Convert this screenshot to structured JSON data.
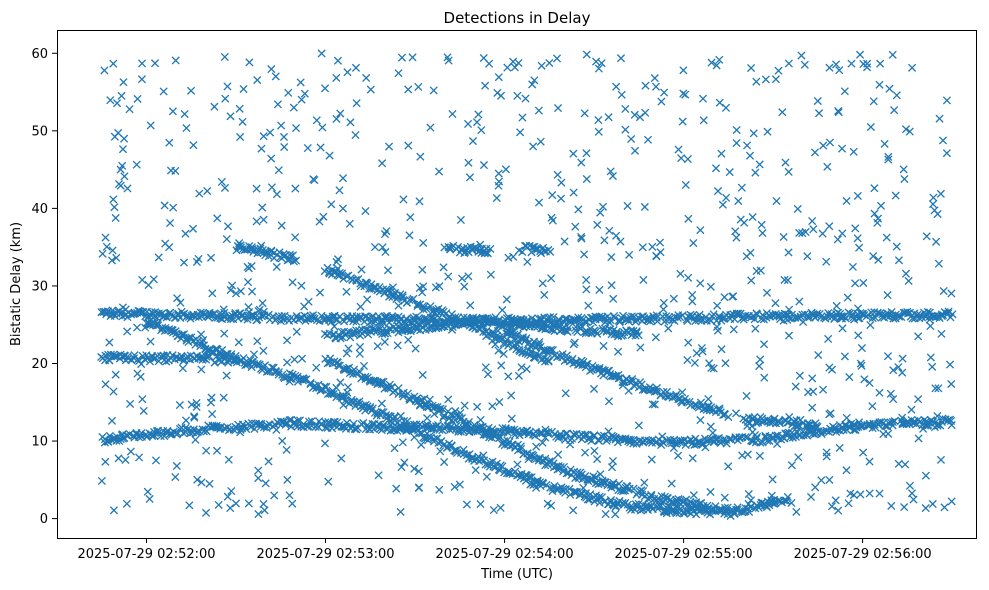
{
  "chart_data": {
    "type": "scatter",
    "title": "Detections in Delay",
    "xlabel": "Time (UTC)",
    "ylabel": "Bistatic Delay (km)",
    "x_ticks": [
      "2025-07-29 02:52:00",
      "2025-07-29 02:53:00",
      "2025-07-29 02:54:00",
      "2025-07-29 02:55:00",
      "2025-07-29 02:56:00"
    ],
    "y_ticks": [
      0,
      10,
      20,
      30,
      40,
      50,
      60
    ],
    "xlim": [
      "2025-07-29 02:51:30",
      "2025-07-29 02:56:38"
    ],
    "ylim": [
      -2.5,
      63
    ],
    "grid": false,
    "legend": "none",
    "marker": "x",
    "series_color": "#1f77b4",
    "series": [
      {
        "tracks": [
          {
            "from": "2025-07-29 02:51:45",
            "to": "2025-07-29 02:56:30",
            "y": [
              26.5,
              25.8,
              25.5,
              26.0,
              26.3
            ]
          },
          {
            "from": "2025-07-29 02:51:45",
            "to": "2025-07-29 02:56:30",
            "y": [
              10.2,
              11.5,
              12.3,
              11.8,
              11.5,
              10.5,
              9.8,
              10.2,
              12.0,
              12.5
            ]
          },
          {
            "from": "2025-07-29 02:51:45",
            "to": "2025-07-29 02:52:30",
            "y": [
              20.8,
              20.5
            ]
          },
          {
            "from": "2025-07-29 02:52:00",
            "to": "2025-07-29 02:55:10",
            "y": [
              25.5,
              21.0,
              17.5,
              13.0,
              8.0,
              4.0,
              1.5,
              0.8
            ]
          },
          {
            "from": "2025-07-29 02:53:00",
            "to": "2025-07-29 02:55:15",
            "y": [
              20.5,
              16.0,
              11.0,
              6.0,
              3.0,
              1.0
            ]
          },
          {
            "from": "2025-07-29 02:53:00",
            "to": "2025-07-29 02:54:15",
            "y": [
              32.0,
              28.5,
              25.0,
              20.0
            ]
          },
          {
            "from": "2025-07-29 02:54:00",
            "to": "2025-07-29 02:55:15",
            "y": [
              24.0,
              20.0,
              16.5,
              13.5
            ]
          },
          {
            "from": "2025-07-29 02:53:00",
            "to": "2025-07-29 02:54:45",
            "y": [
              23.5,
              24.5,
              25.5,
              24.5,
              23.8
            ]
          },
          {
            "from": "2025-07-29 02:55:15",
            "to": "2025-07-29 02:55:35",
            "y": [
              0.5,
              2.5
            ]
          },
          {
            "from": "2025-07-29 02:52:30",
            "to": "2025-07-29 02:52:50",
            "y": [
              35.0,
              33.5
            ]
          },
          {
            "from": "2025-07-29 02:53:40",
            "to": "2025-07-29 02:53:55",
            "y": [
              34.8,
              34.5
            ]
          },
          {
            "from": "2025-07-29 02:54:05",
            "to": "2025-07-29 02:54:15",
            "y": [
              34.8,
              34.6
            ]
          },
          {
            "from": "2025-07-29 02:55:20",
            "to": "2025-07-29 02:55:45",
            "y": [
              12.8,
              12.2
            ]
          }
        ],
        "scattered_detections": {
          "x_range": [
            "2025-07-29 02:51:45",
            "2025-07-29 02:56:30"
          ],
          "y_range": [
            0.5,
            60
          ]
        }
      }
    ]
  }
}
